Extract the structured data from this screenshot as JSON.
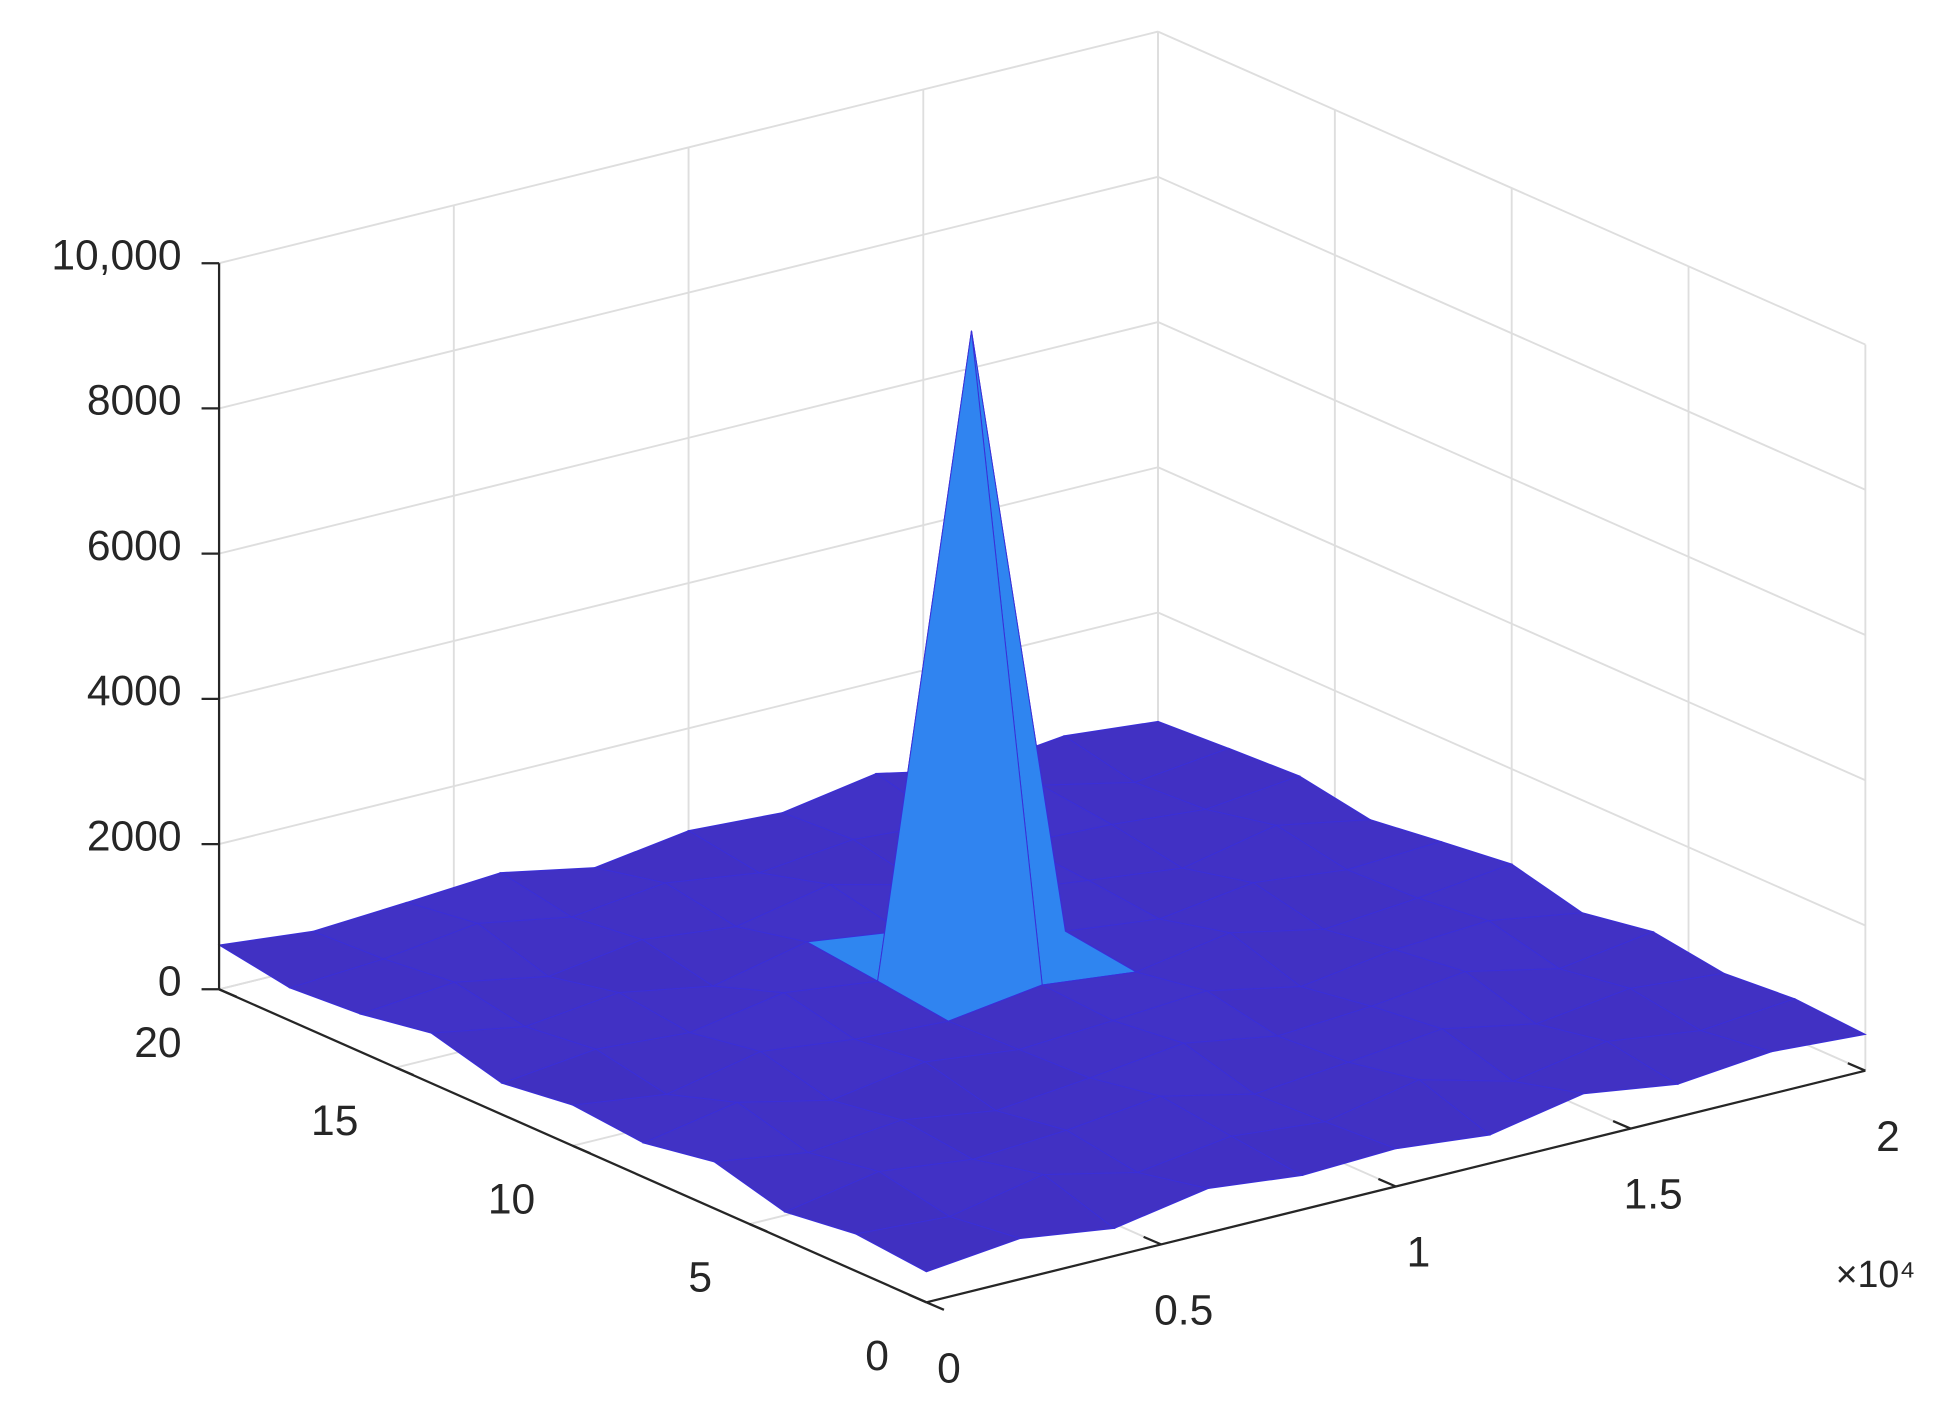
{
  "chart_data": {
    "type": "surface",
    "x": [
      0,
      2000,
      4000,
      6000,
      8000,
      10000,
      12000,
      14000,
      16000,
      18000,
      20000
    ],
    "y": [
      0,
      2,
      4,
      6,
      8,
      10,
      12,
      14,
      16,
      18,
      20
    ],
    "z": [
      [
        420,
        560,
        380,
        610,
        470,
        520,
        390,
        640,
        450,
        580,
        500
      ],
      [
        510,
        430,
        690,
        400,
        580,
        460,
        720,
        380,
        610,
        440,
        560
      ],
      [
        380,
        620,
        470,
        550,
        700,
        410,
        530,
        670,
        420,
        590,
        480
      ],
      [
        640,
        450,
        580,
        390,
        520,
        680,
        460,
        550,
        710,
        430,
        620
      ],
      [
        470,
        710,
        420,
        630,
        480,
        560,
        650,
        390,
        580,
        660,
        450
      ],
      [
        560,
        390,
        660,
        510,
        440,
        620,
        480,
        700,
        430,
        540,
        690
      ],
      [
        430,
        580,
        490,
        720,
        560,
        9200,
        610,
        460,
        640,
        500,
        570
      ],
      [
        690,
        460,
        610,
        380,
        670,
        500,
        720,
        560,
        410,
        680,
        440
      ],
      [
        520,
        640,
        400,
        590,
        450,
        710,
        390,
        630,
        580,
        470,
        610
      ],
      [
        450,
        530,
        700,
        470,
        620,
        440,
        580,
        490,
        690,
        410,
        560
      ],
      [
        610,
        480,
        560,
        650,
        400,
        590,
        520,
        740,
        470,
        620,
        500
      ]
    ],
    "xlim": [
      0,
      20000
    ],
    "xticks": [
      {
        "value": 0,
        "label": "0"
      },
      {
        "value": 5000,
        "label": "0.5"
      },
      {
        "value": 10000,
        "label": "1"
      },
      {
        "value": 15000,
        "label": "1.5"
      },
      {
        "value": 20000,
        "label": "2"
      }
    ],
    "x_exponent_label": "×10⁴",
    "ylim": [
      0,
      20
    ],
    "yticks": [
      0,
      5,
      10,
      15,
      20
    ],
    "zlim": [
      0,
      10000
    ],
    "zticks": [
      0,
      2000,
      4000,
      6000,
      8000,
      {
        "value": 10000,
        "label": "10,000"
      }
    ],
    "grid": true,
    "colormap": [
      "#3e26a8",
      "#4543f2",
      "#2d8cf0",
      "#16b3c4",
      "#5cc65e",
      "#d1bb2a",
      "#fbd62b",
      "#f9fb15"
    ]
  }
}
